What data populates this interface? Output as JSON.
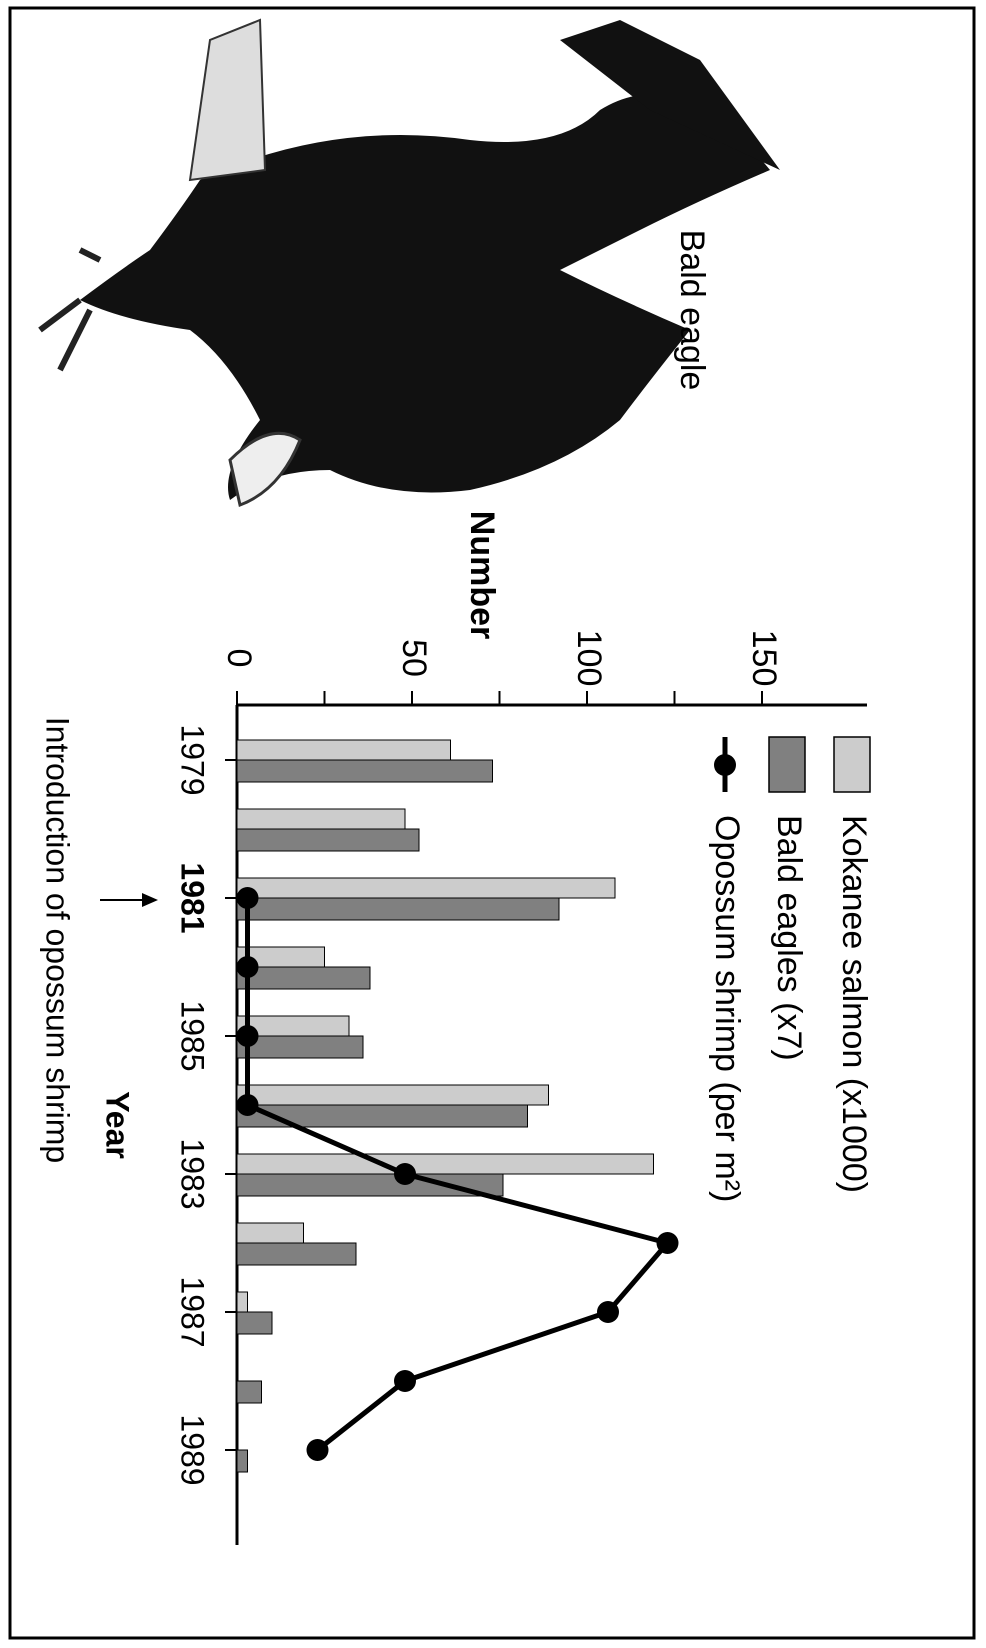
{
  "chart_data": {
    "type": "bar",
    "image_label": "Bald eagle",
    "value_axis_title": "Number",
    "category_axis_title": "Year",
    "annotation": "Introduction of opossum shrimp",
    "categories": [
      "1979",
      null,
      "1981",
      null,
      "1985",
      null,
      "1983",
      null,
      "1987",
      null,
      "1989"
    ],
    "ylim": [
      0,
      180
    ],
    "yticks": [
      0,
      50,
      100,
      150
    ],
    "yticks_minor": [
      25,
      75,
      125
    ],
    "series": [
      {
        "name": "Kokanee salmon (x1000)",
        "color": "#cccccc",
        "values": [
          61,
          48,
          108,
          25,
          32,
          89,
          119,
          19,
          3,
          null,
          null
        ]
      },
      {
        "name": "Bald eagles (x7)",
        "color": "#808080",
        "values": [
          73,
          52,
          92,
          38,
          36,
          83,
          76,
          34,
          10,
          7,
          3
        ]
      },
      {
        "name": "Opossum shrimp (per m²)",
        "type": "line",
        "color": "#000000",
        "values": [
          null,
          null,
          3,
          3,
          3,
          3,
          48,
          123,
          106,
          48,
          23
        ]
      }
    ]
  }
}
